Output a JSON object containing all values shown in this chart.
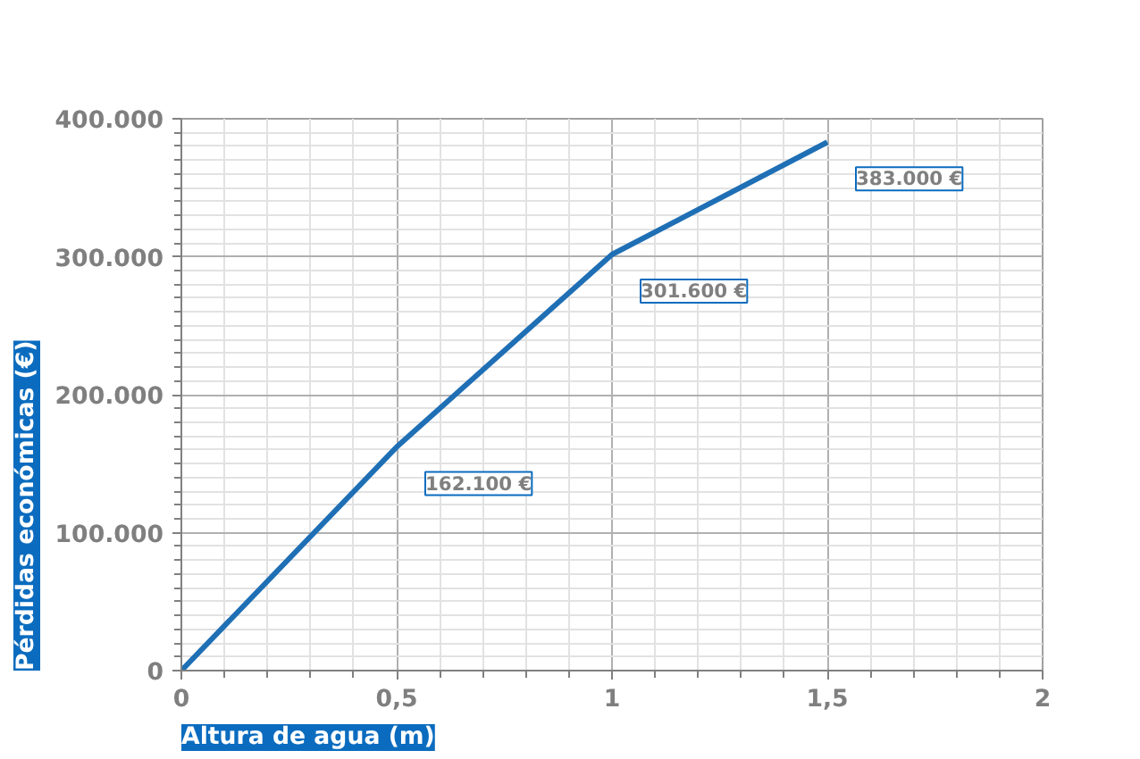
{
  "chart_data": {
    "type": "line",
    "xlabel": "Altura de agua (m)",
    "ylabel": "Pérdidas económicas (€)",
    "x": [
      0,
      0.5,
      1,
      1.5
    ],
    "series": [
      {
        "color": "#1f6fb5",
        "values": [
          0,
          162100,
          301600,
          383000
        ],
        "value_labels": [
          null,
          "162.100 €",
          "301.600 €",
          "383.000 €"
        ]
      }
    ],
    "xlim": [
      0,
      2
    ],
    "xticks": [
      0,
      {
        "value": 0.5,
        "label": "0,5"
      },
      1,
      {
        "value": 1.5,
        "label": "1,5"
      },
      2
    ],
    "ylim": [
      0,
      400000
    ],
    "yticks": [
      0,
      {
        "value": 100000,
        "label": "100.000"
      },
      {
        "value": 200000,
        "label": "200.000"
      },
      {
        "value": 300000,
        "label": "300.000"
      },
      {
        "value": 400000,
        "label": "400.000"
      }
    ],
    "grid": true,
    "marker": "none",
    "line_style": "solid"
  }
}
